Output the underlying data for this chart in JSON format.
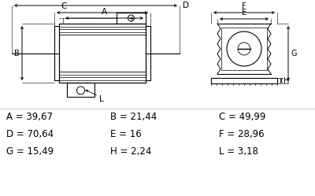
{
  "bg_color": "#ffffff",
  "measurements": [
    {
      "label": "A = 39,67",
      "col": 0,
      "row": 0
    },
    {
      "label": "B = 21,44",
      "col": 1,
      "row": 0
    },
    {
      "label": "C = 49,99",
      "col": 2,
      "row": 0
    },
    {
      "label": "D = 70,64",
      "col": 0,
      "row": 1
    },
    {
      "label": "E = 16",
      "col": 1,
      "row": 1
    },
    {
      "label": "F = 28,96",
      "col": 2,
      "row": 1
    },
    {
      "label": "G = 15,49",
      "col": 0,
      "row": 2
    },
    {
      "label": "H = 2,24",
      "col": 1,
      "row": 2
    },
    {
      "label": "L = 3,18",
      "col": 2,
      "row": 2
    }
  ],
  "text_fontsize": 8.5,
  "line_color": "#000000"
}
